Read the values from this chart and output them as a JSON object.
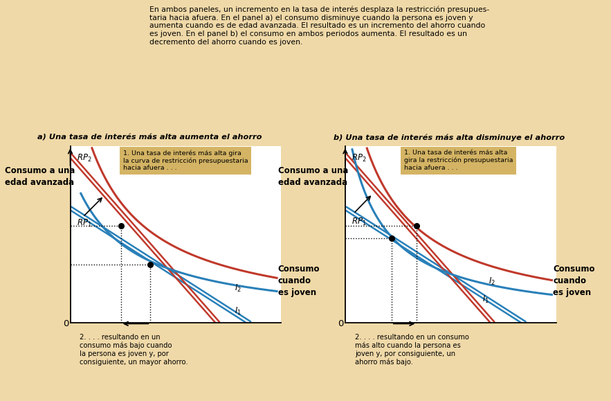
{
  "bg_color": "#f0d9a8",
  "white": "#ffffff",
  "red_color": "#c0392b",
  "blue_color": "#2980b9",
  "black": "#000000",
  "annotation_bg": "#d4b464",
  "header_text": "En ambos paneles, un incremento en la tasa de interés desplaza la restricción presupues-\ntaria hacia afuera. En el panel a) el consumo disminuye cuando la persona es joven y\naumenta cuando es de edad avanzada. El resultado es un incremento del ahorro cuando\nes joven. En el panel b) el consumo en ambos periodos aumenta. El resultado es un\ndecremento del ahorro cuando es joven.",
  "panel_a_title": "a) Una tasa de interés más alta aumenta el ahorro",
  "panel_b_title": "b) Una tasa de interés más alta disminuye el ahorro",
  "ylabel": "Consumo a una\nedad avanzada",
  "xlabel": "Consumo\ncuando\nes joven",
  "panel_a_note1": "1. Una tasa de interés más alta gira\nla curva de restricción presupuestaria\nhacia afuera . . .",
  "panel_a_note2": "2. . . . resultando en un\nconsumo más bajo cuando\nla persona es joven y, por\nconsiguiente, un mayor ahorro.",
  "panel_b_note1": "1. Una tasa de interés más alta\ngira la restricción presupuestaria\nhacia afuera . . .",
  "panel_b_note2": "2. . . . resultando en un consumo\nmás alto cuando la persona es\njoven y, por consiguiente, un\nahorro más bajo."
}
